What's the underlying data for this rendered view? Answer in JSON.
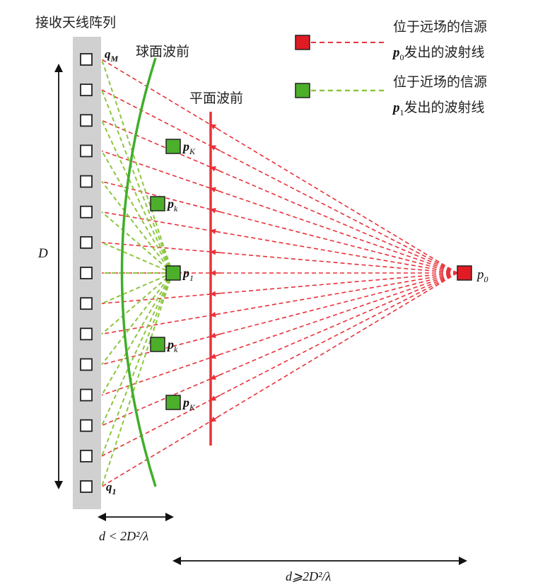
{
  "title": "接收天线阵列",
  "labels": {
    "spherical_wavefront": "球面波前",
    "plane_wavefront": "平面波前",
    "aperture": "D",
    "near_distance": "d < 2D²/λ",
    "far_distance": "d⩾2D²/λ"
  },
  "legend": {
    "far": {
      "line1": "位于远场的信源",
      "line2_symbol": "p",
      "line2_sub": "0",
      "line2_text": "发出的波射线"
    },
    "near": {
      "line1": "位于近场的信源",
      "line2_symbol": "p",
      "line2_sub": "1",
      "line2_text": "发出的波射线"
    }
  },
  "antenna": {
    "element_count": 15,
    "top_label": {
      "symbol": "q",
      "sub": "M"
    },
    "bottom_label": {
      "symbol": "q",
      "sub": "1"
    }
  },
  "near_sources": [
    {
      "symbol": "p",
      "sub": "K"
    },
    {
      "symbol": "p",
      "sub": "k"
    },
    {
      "symbol": "p",
      "sub": "1"
    },
    {
      "symbol": "p",
      "sub": "k"
    },
    {
      "symbol": "p",
      "sub": "K"
    }
  ],
  "far_source": {
    "symbol": "p",
    "sub": "0"
  },
  "colors": {
    "far_ray": "#e8323a",
    "near_ray": "#8dc63f",
    "spherical_wavefront": "#3fae2a",
    "plane_wavefront": "#e8323a",
    "far_source_fill": "#e01b24",
    "near_source_fill": "#4caf2a",
    "array_bar": "#d0d0d0"
  }
}
